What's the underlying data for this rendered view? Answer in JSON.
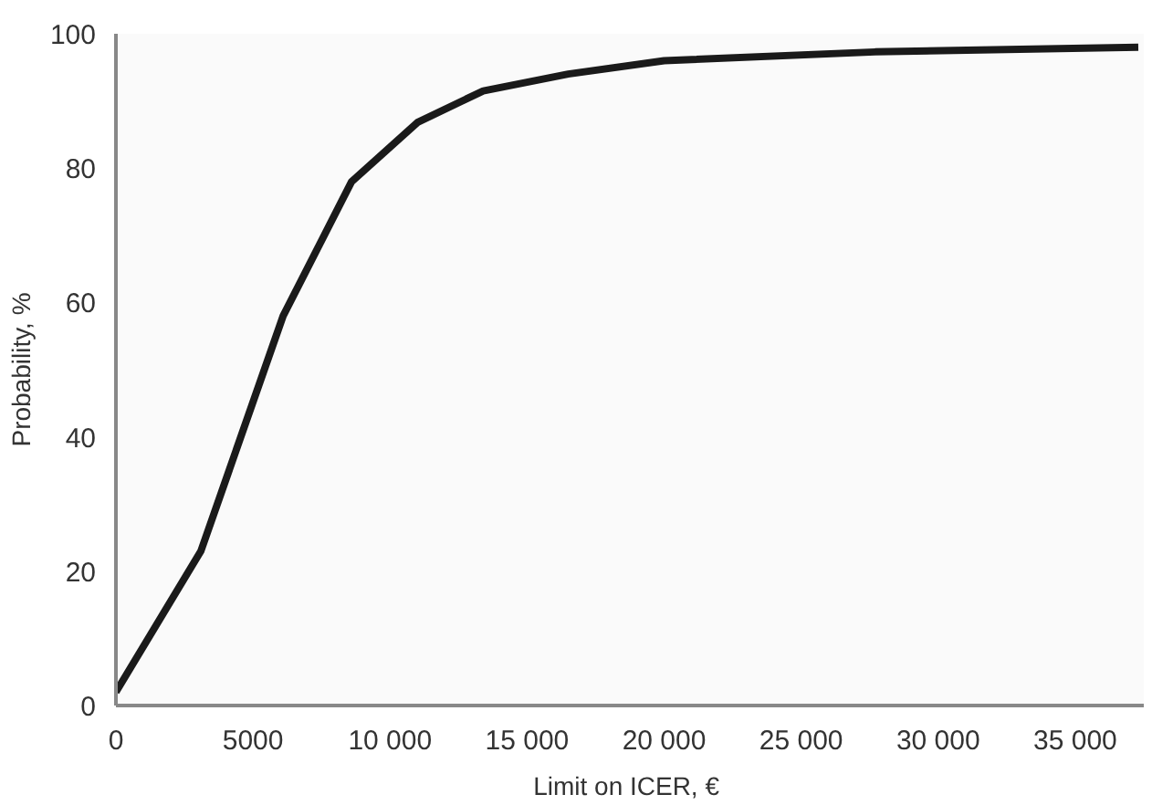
{
  "chart_data": {
    "type": "line",
    "xlabel": "Limit on ICER,  €",
    "ylabel": "Probability, %",
    "x": [
      0,
      3100,
      6100,
      8600,
      11000,
      13400,
      16500,
      20000,
      27700,
      37300
    ],
    "series": [
      {
        "color": "#1a1a1a",
        "values": [
          2,
          23,
          58,
          78,
          86.8,
          91.5,
          94,
          96,
          97.3,
          98
        ]
      }
    ],
    "xlim": [
      0,
      37500
    ],
    "ylim": [
      0,
      100
    ],
    "xticks": [
      0,
      5000,
      {
        "value": 10000,
        "label": "10 000"
      },
      {
        "value": 15000,
        "label": "15 000"
      },
      {
        "value": 20000,
        "label": "20 000"
      },
      {
        "value": 25000,
        "label": "25 000"
      },
      {
        "value": 30000,
        "label": "30 000"
      },
      {
        "value": 35000,
        "label": "35 000"
      }
    ],
    "yticks": [
      0,
      20,
      40,
      60,
      80,
      100
    ],
    "grid": false,
    "marker": "none",
    "line_style": "solid"
  }
}
